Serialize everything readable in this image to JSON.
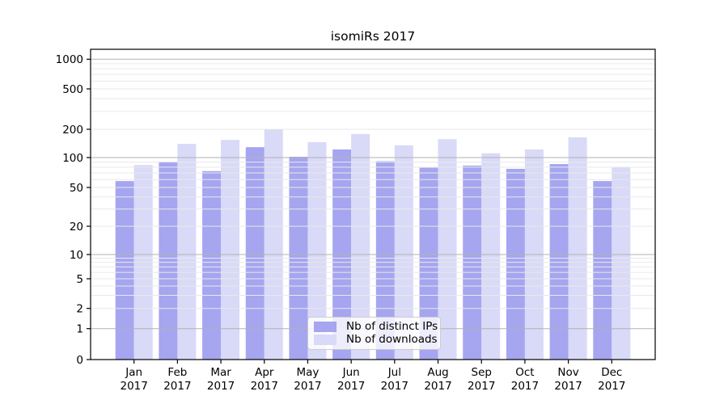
{
  "chart_data": {
    "type": "bar",
    "title": "isomiRs 2017",
    "categories": [
      "Jan",
      "Feb",
      "Mar",
      "Apr",
      "May",
      "Jun",
      "Jul",
      "Aug",
      "Sep",
      "Oct",
      "Nov",
      "Dec"
    ],
    "category_year": "2017",
    "series": [
      {
        "name": "Nb of distinct IPs",
        "color": "#a5a5f0",
        "values": [
          58,
          91,
          73,
          129,
          102,
          122,
          92,
          79,
          83,
          77,
          86,
          58
        ]
      },
      {
        "name": "Nb of downloads",
        "color": "#d9d9f8",
        "values": [
          84,
          140,
          154,
          200,
          146,
          178,
          135,
          157,
          111,
          122,
          164,
          80
        ]
      }
    ],
    "y_axis": {
      "scale": "symlog",
      "tick_labels": [
        0,
        1,
        2,
        5,
        10,
        20,
        50,
        100,
        200,
        500,
        1000
      ],
      "major_gridlines": [
        1,
        10,
        100,
        1000
      ],
      "minor_gridlines": [
        2,
        3,
        4,
        5,
        6,
        7,
        8,
        9,
        20,
        30,
        40,
        50,
        60,
        70,
        80,
        90,
        200,
        300,
        400,
        500,
        600,
        700,
        800,
        900
      ],
      "ylim": [
        0,
        1260
      ]
    },
    "legend": {
      "position": "lower-center"
    },
    "grid": {
      "major_color": "#b2b2b2",
      "minor_color": "#e9e9e9",
      "grid_on_top": true
    },
    "colors": {
      "spine": "#000000",
      "background": "#ffffff"
    }
  }
}
